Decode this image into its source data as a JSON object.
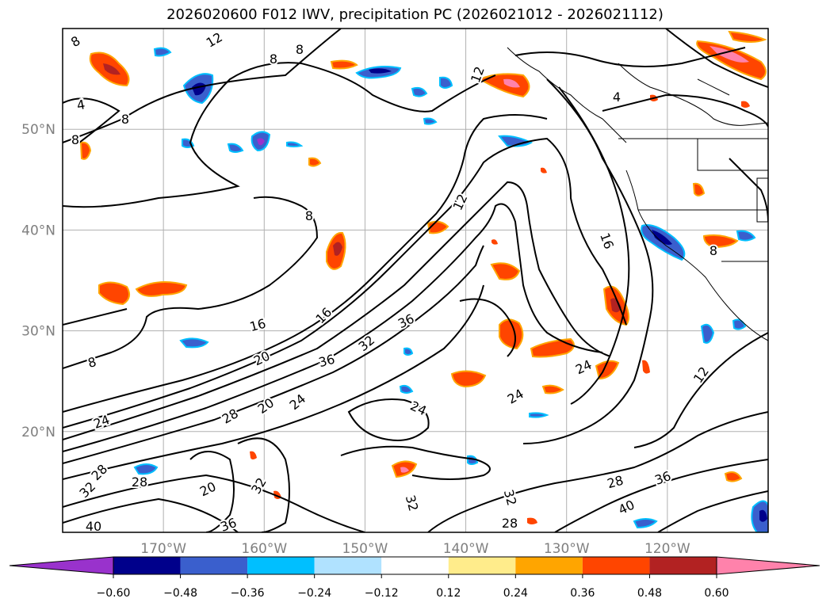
{
  "title": "2026020600 F012 IWV, precipitation PC (2026021012 - 2026021112)",
  "map": {
    "lon_range": [
      -180,
      -110
    ],
    "lat_range": [
      10,
      60
    ],
    "lon_gridlines": [
      -170,
      -160,
      -150,
      -140,
      -130,
      -120
    ],
    "lat_gridlines": [
      20,
      30,
      40,
      50
    ],
    "lon_tick_labels": [
      "170°W",
      "160°W",
      "150°W",
      "140°W",
      "130°W",
      "120°W"
    ],
    "lat_tick_labels": [
      "20°N",
      "30°N",
      "40°N",
      "50°N"
    ],
    "grid": true,
    "iwv_contour_labels": [
      "8",
      "12",
      "4",
      "8",
      "8",
      "12",
      "8",
      "8",
      "8",
      "12",
      "16",
      "16",
      "20",
      "24",
      "36",
      "32",
      "36",
      "28",
      "20",
      "28",
      "24",
      "32",
      "20",
      "28",
      "32",
      "36",
      "40",
      "24",
      "24",
      "24",
      "12",
      "28",
      "36",
      "40",
      "28",
      "32",
      "32",
      "8",
      "16",
      "4",
      "8"
    ]
  },
  "colorbar": {
    "extend": "both",
    "levels": [
      -0.6,
      -0.48,
      -0.36,
      -0.24,
      -0.12,
      0.12,
      0.24,
      0.36,
      0.48,
      0.6
    ],
    "tick_labels": [
      "−0.60",
      "−0.48",
      "−0.36",
      "−0.24",
      "−0.12",
      "0.12",
      "0.24",
      "0.36",
      "0.48",
      "0.60"
    ],
    "colors": [
      "#9932cc",
      "#00008b",
      "#3a5fcd",
      "#00bfff",
      "#b0e2ff",
      "#ffffff",
      "#ffec8b",
      "#ffa500",
      "#ff4500",
      "#b22222",
      "#ff82ab"
    ]
  }
}
